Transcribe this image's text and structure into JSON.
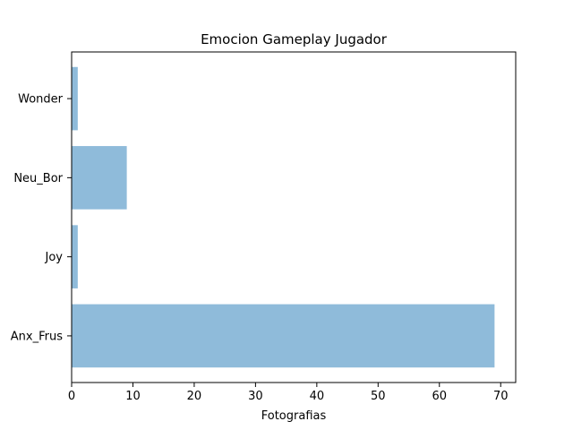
{
  "chart_data": {
    "type": "bar",
    "orientation": "horizontal",
    "title": "Emocion Gameplay Jugador",
    "xlabel": "Fotografias",
    "ylabel": "",
    "categories": [
      "Anx_Frus",
      "Joy",
      "Neu_Bor",
      "Wonder"
    ],
    "values": [
      69,
      1,
      9,
      1
    ],
    "xlim": [
      0,
      72.45
    ],
    "xticks": [
      0,
      10,
      20,
      30,
      40,
      50,
      60,
      70
    ],
    "grid": false,
    "legend": "none",
    "bar_color": "#8fbbda"
  }
}
